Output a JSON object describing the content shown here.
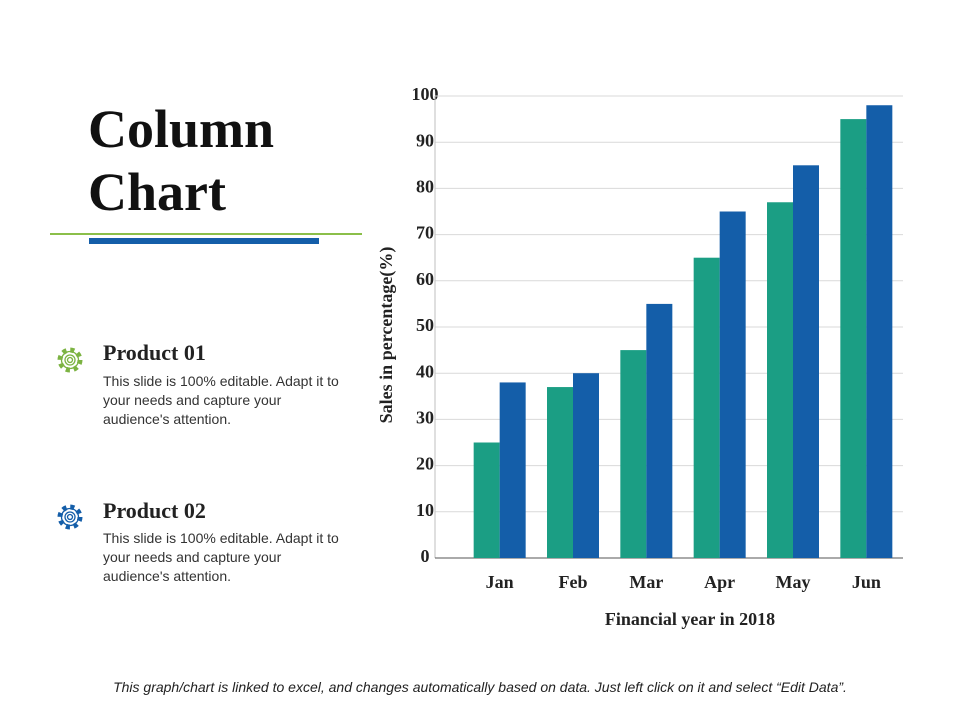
{
  "chart_data": {
    "type": "bar",
    "title": "Column Chart",
    "categories": [
      "Jan",
      "Feb",
      "Mar",
      "Apr",
      "May",
      "Jun"
    ],
    "series": [
      {
        "name": "Product 01",
        "color": "#1b9e84",
        "values": [
          25,
          37,
          45,
          65,
          77,
          95
        ],
        "description": "This slide is 100% editable. Adapt it to your needs and capture your audience's attention."
      },
      {
        "name": "Product 02",
        "color": "#145ea9",
        "values": [
          38,
          40,
          55,
          75,
          85,
          98
        ],
        "description": "This slide is 100% editable. Adapt it to your needs and capture your audience's attention."
      }
    ],
    "ylabel": "Sales in percentage(%)",
    "xlabel": "Financial year in 2018",
    "ylim": [
      0,
      100
    ],
    "yticks": [
      0,
      10,
      20,
      30,
      40,
      50,
      60,
      70,
      80,
      90,
      100
    ],
    "grid": true
  },
  "footer": "This graph/chart is linked to excel, and changes automatically based on data. Just left click on it and select “Edit Data”."
}
